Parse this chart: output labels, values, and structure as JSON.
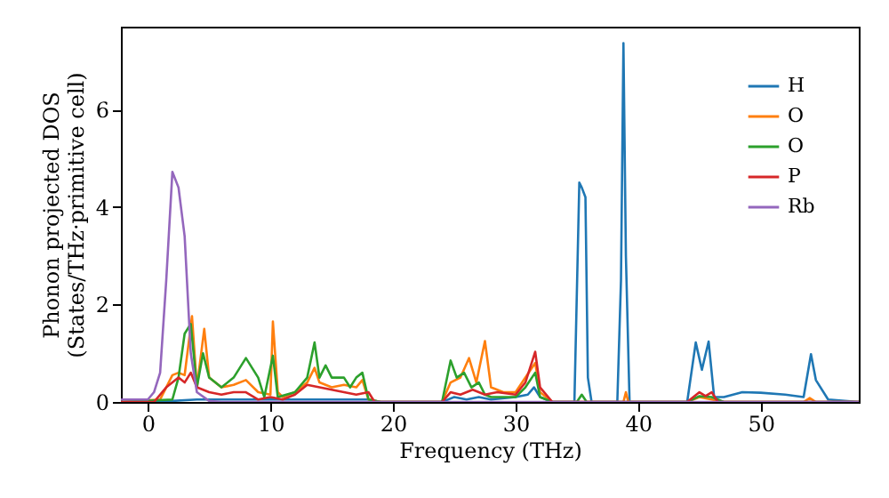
{
  "chart_data": {
    "type": "line",
    "xlabel": "Frequency (THz)",
    "ylabel": "Phonon projected DOS\n(States/THz·primitive cell)",
    "xlim": [
      -2.2,
      58
    ],
    "ylim": [
      0,
      7.7
    ],
    "xticks": [
      0,
      10,
      20,
      30,
      40,
      50
    ],
    "yticks": [
      0,
      2,
      4,
      6
    ],
    "grid": false,
    "legend": "top right",
    "line_style": "solid",
    "marker": "none",
    "series": [
      {
        "name": "H",
        "color": "#1f77b4",
        "x": [
          -2.2,
          2,
          4,
          6,
          8,
          10,
          12,
          14,
          16,
          18,
          19,
          24,
          25,
          26,
          27,
          28,
          30,
          31,
          31.5,
          32,
          33,
          34.8,
          35.2,
          35.4,
          35.7,
          35.9,
          36.2,
          38.3,
          38.6,
          38.8,
          39.0,
          39.3,
          44,
          44.7,
          45.2,
          45.75,
          46.2,
          47,
          48.5,
          50,
          52,
          53.5,
          54.1,
          54.5,
          55.5,
          58
        ],
        "values": [
          0,
          0.02,
          0.05,
          0.05,
          0.05,
          0.05,
          0.05,
          0.05,
          0.05,
          0.05,
          0,
          0,
          0.1,
          0.05,
          0.1,
          0.05,
          0.1,
          0.15,
          0.3,
          0.1,
          0,
          0,
          4.5,
          4.4,
          4.2,
          0.5,
          0,
          0,
          2.5,
          7.36,
          3.0,
          0,
          0,
          1.22,
          0.66,
          1.24,
          0.1,
          0.1,
          0.2,
          0.19,
          0.15,
          0.1,
          0.98,
          0.45,
          0.05,
          0
        ]
      },
      {
        "name": "O",
        "color": "#ff7f0e",
        "x": [
          -2.2,
          1,
          1.5,
          2,
          2.5,
          3,
          3.6,
          4,
          4.6,
          5,
          6,
          7,
          8,
          9,
          10,
          10.2,
          10.6,
          11,
          12,
          13,
          13.6,
          14,
          14.5,
          15,
          16,
          17,
          17.5,
          18,
          19,
          24,
          24.7,
          25.5,
          26.2,
          26.8,
          27.5,
          28,
          29,
          30,
          30.8,
          31.6,
          32,
          33,
          38.8,
          39,
          39.2,
          44,
          45,
          46,
          47,
          53.5,
          54,
          54.5,
          58
        ],
        "values": [
          0,
          0.05,
          0.3,
          0.55,
          0.6,
          0.55,
          1.76,
          0.3,
          1.5,
          0.5,
          0.3,
          0.35,
          0.45,
          0.2,
          0.15,
          1.65,
          0.2,
          0.1,
          0.2,
          0.4,
          0.7,
          0.4,
          0.35,
          0.3,
          0.35,
          0.3,
          0.45,
          0.05,
          0,
          0,
          0.4,
          0.5,
          0.9,
          0.4,
          1.25,
          0.3,
          0.2,
          0.2,
          0.5,
          0.8,
          0.2,
          0,
          0,
          0.2,
          0,
          0,
          0.1,
          0.05,
          0,
          0,
          0.08,
          0,
          0
        ]
      },
      {
        "name": "O",
        "color": "#2ca02c",
        "x": [
          -2.2,
          2,
          2.5,
          3,
          3.5,
          4,
          4.5,
          5,
          6,
          7,
          8,
          9,
          9.5,
          10.2,
          10.6,
          12,
          13,
          13.6,
          14,
          14.5,
          15,
          16,
          16.5,
          17,
          17.5,
          18,
          19,
          24,
          24.7,
          25.2,
          25.8,
          26.4,
          27,
          27.5,
          28,
          30,
          30.8,
          31.6,
          32,
          33,
          35,
          35.4,
          35.8,
          44,
          45,
          46,
          47,
          58
        ],
        "values": [
          0,
          0.05,
          0.5,
          1.4,
          1.6,
          0.3,
          1.0,
          0.5,
          0.3,
          0.5,
          0.9,
          0.5,
          0.1,
          0.95,
          0.1,
          0.2,
          0.5,
          1.22,
          0.5,
          0.75,
          0.5,
          0.5,
          0.3,
          0.5,
          0.6,
          0.05,
          0,
          0,
          0.85,
          0.5,
          0.6,
          0.3,
          0.4,
          0.15,
          0.1,
          0.1,
          0.3,
          0.6,
          0.1,
          0,
          0,
          0.15,
          0,
          0,
          0.12,
          0.1,
          0,
          0
        ]
      },
      {
        "name": "P",
        "color": "#d62728",
        "x": [
          -2.2,
          0.5,
          1.5,
          2.5,
          3,
          3.5,
          4,
          5,
          6,
          7,
          8,
          9,
          10,
          11,
          12,
          13,
          14,
          15,
          16,
          17,
          18,
          18.5,
          24,
          24.7,
          25.5,
          26.5,
          27.5,
          28.5,
          30,
          30.8,
          31.6,
          32,
          33,
          44,
          45,
          45.5,
          46,
          46.5,
          58
        ],
        "values": [
          0,
          0,
          0.3,
          0.5,
          0.4,
          0.6,
          0.3,
          0.2,
          0.15,
          0.2,
          0.2,
          0.05,
          0.1,
          0.05,
          0.15,
          0.35,
          0.3,
          0.25,
          0.2,
          0.15,
          0.2,
          0,
          0,
          0.2,
          0.15,
          0.25,
          0.15,
          0.2,
          0.15,
          0.4,
          1.03,
          0.3,
          0,
          0,
          0.2,
          0.12,
          0.2,
          0,
          0
        ]
      },
      {
        "name": "Rb",
        "color": "#9467bd",
        "x": [
          -2.2,
          0,
          0.5,
          1,
          1.5,
          2,
          2.5,
          3,
          3.5,
          4,
          5,
          6,
          58
        ],
        "values": [
          0.05,
          0.05,
          0.2,
          0.6,
          2.5,
          4.72,
          4.4,
          3.4,
          1.0,
          0.2,
          0.02,
          0,
          0
        ]
      }
    ]
  }
}
